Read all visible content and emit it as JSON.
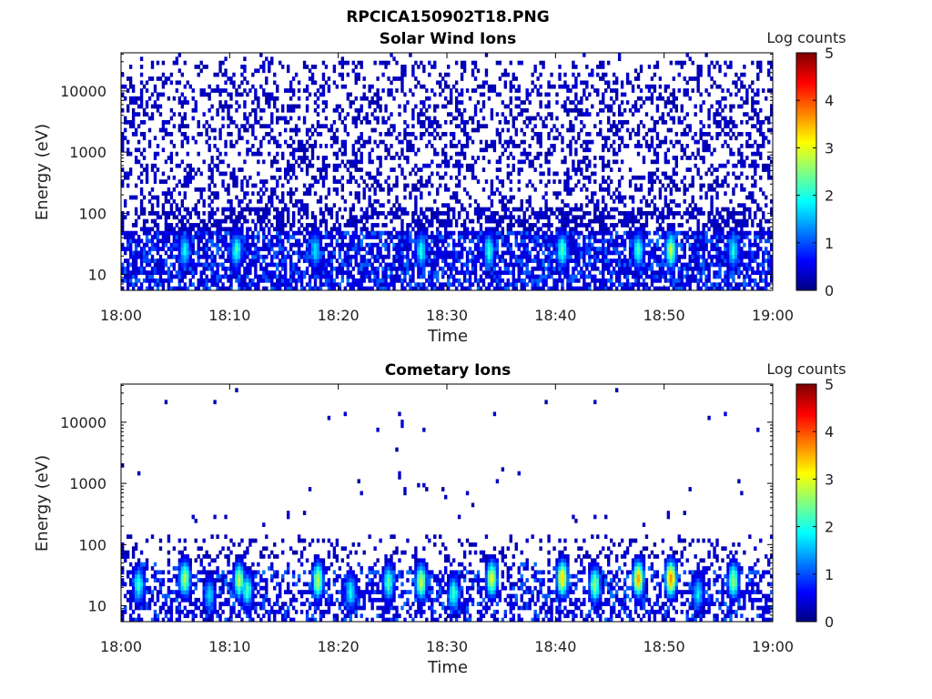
{
  "figure_title": "RPCICA150902T18.PNG",
  "colors": {
    "jet": [
      "#00007f",
      "#0000ff",
      "#0080ff",
      "#00ffff",
      "#80ff80",
      "#ffff00",
      "#ff8000",
      "#ff0000",
      "#7f0000"
    ],
    "axis": "#000000",
    "background": "#ffffff"
  },
  "chart_data": [
    {
      "type": "heatmap",
      "title": "Solar Wind Ions",
      "xlabel": "Time",
      "ylabel": "Energy (eV)",
      "x_range": [
        "18:00",
        "19:00"
      ],
      "x_ticks": [
        "18:00",
        "18:10",
        "18:20",
        "18:30",
        "18:40",
        "18:50",
        "19:00"
      ],
      "y_scale": "log",
      "y_range": [
        5.5,
        42000
      ],
      "y_ticks": [
        10,
        100,
        1000,
        10000
      ],
      "y_tick_labels": [
        "10",
        "100",
        "1000",
        "10000"
      ],
      "colorbar": {
        "label": "Log counts",
        "range": [
          0,
          5
        ],
        "ticks": [
          "0",
          "1",
          "2",
          "3",
          "4",
          "5"
        ]
      },
      "noise_level": "high",
      "bursts": [
        {
          "time_min": 5.8,
          "energy_eV": 25,
          "log_counts": 1.9
        },
        {
          "time_min": 10.5,
          "energy_eV": 25,
          "log_counts": 2.2
        },
        {
          "time_min": 17.8,
          "energy_eV": 25,
          "log_counts": 1.8
        },
        {
          "time_min": 27.5,
          "energy_eV": 25,
          "log_counts": 2.0
        },
        {
          "time_min": 33.8,
          "energy_eV": 25,
          "log_counts": 2.1
        },
        {
          "time_min": 40.5,
          "energy_eV": 25,
          "log_counts": 2.3
        },
        {
          "time_min": 47.5,
          "energy_eV": 25,
          "log_counts": 2.2
        },
        {
          "time_min": 50.5,
          "energy_eV": 25,
          "log_counts": 2.8
        },
        {
          "time_min": 56.3,
          "energy_eV": 25,
          "log_counts": 2.0
        }
      ]
    },
    {
      "type": "heatmap",
      "title": "Cometary Ions",
      "xlabel": "Time",
      "ylabel": "Energy (eV)",
      "x_range": [
        "18:00",
        "19:00"
      ],
      "x_ticks": [
        "18:00",
        "18:10",
        "18:20",
        "18:30",
        "18:40",
        "18:50",
        "19:00"
      ],
      "y_scale": "log",
      "y_range": [
        5.5,
        42000
      ],
      "y_ticks": [
        10,
        100,
        1000,
        10000
      ],
      "y_tick_labels": [
        "10",
        "100",
        "1000",
        "10000"
      ],
      "colorbar": {
        "label": "Log counts",
        "range": [
          0,
          5
        ],
        "ticks": [
          "0",
          "1",
          "2",
          "3",
          "4",
          "5"
        ]
      },
      "noise_level": "low",
      "bursts": [
        {
          "time_min": 1.5,
          "energy_eV": 22,
          "log_counts": 2.2
        },
        {
          "time_min": 5.8,
          "energy_eV": 28,
          "log_counts": 2.8
        },
        {
          "time_min": 8.0,
          "energy_eV": 15,
          "log_counts": 1.8
        },
        {
          "time_min": 10.8,
          "energy_eV": 26,
          "log_counts": 2.8
        },
        {
          "time_min": 11.5,
          "energy_eV": 18,
          "log_counts": 2.2
        },
        {
          "time_min": 18.0,
          "energy_eV": 26,
          "log_counts": 2.9
        },
        {
          "time_min": 21.0,
          "energy_eV": 17,
          "log_counts": 2.0
        },
        {
          "time_min": 24.5,
          "energy_eV": 24,
          "log_counts": 2.3
        },
        {
          "time_min": 27.5,
          "energy_eV": 25,
          "log_counts": 2.9
        },
        {
          "time_min": 30.5,
          "energy_eV": 16,
          "log_counts": 2.2
        },
        {
          "time_min": 34.0,
          "energy_eV": 28,
          "log_counts": 3.1
        },
        {
          "time_min": 40.5,
          "energy_eV": 28,
          "log_counts": 3.4
        },
        {
          "time_min": 43.5,
          "energy_eV": 22,
          "log_counts": 2.7
        },
        {
          "time_min": 47.5,
          "energy_eV": 28,
          "log_counts": 3.6
        },
        {
          "time_min": 50.5,
          "energy_eV": 28,
          "log_counts": 3.8
        },
        {
          "time_min": 53.0,
          "energy_eV": 16,
          "log_counts": 1.8
        },
        {
          "time_min": 56.3,
          "energy_eV": 26,
          "log_counts": 2.7
        }
      ]
    }
  ]
}
